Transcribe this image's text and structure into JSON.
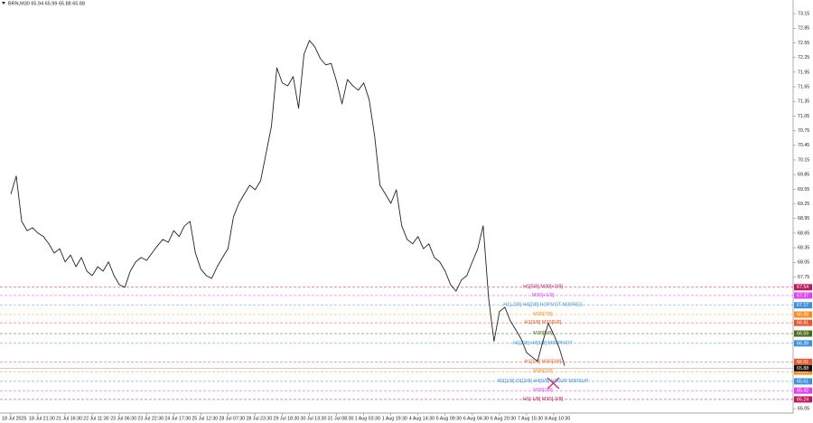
{
  "chart_data": {
    "type": "line",
    "title": "BRN,M30 65.94 65.99 65.88 65.88",
    "color": "#222222",
    "categories": [
      "18 Jul 2025",
      null,
      null,
      null,
      null,
      "18 Jul 21:30",
      null,
      null,
      null,
      null,
      "21 Jul 16:30",
      null,
      null,
      null,
      null,
      "22 Jul 11:30",
      null,
      null,
      null,
      null,
      "23 Jul 06:30",
      null,
      null,
      null,
      null,
      "23 Jul 22:30",
      null,
      null,
      null,
      null,
      "24 Jul 17:30",
      null,
      null,
      null,
      null,
      "25 Jul 12:30",
      null,
      null,
      null,
      null,
      "28 Jul 07:30",
      null,
      null,
      null,
      null,
      "28 Jul 23:30",
      null,
      null,
      null,
      null,
      "29 Jul 18:30",
      null,
      null,
      null,
      null,
      "30 Jul 13:30",
      null,
      null,
      null,
      null,
      "31 Jul 08:30",
      null,
      null,
      null,
      null,
      "1 Aug 03:30",
      null,
      null,
      null,
      null,
      "1 Aug 19:30",
      null,
      null,
      null,
      null,
      "4 Aug 14:30",
      null,
      null,
      null,
      null,
      "5 Aug 09:30",
      null,
      null,
      null,
      null,
      "6 Aug 04:30",
      null,
      null,
      null,
      null,
      "6 Aug 20:30",
      null,
      null,
      null,
      null,
      "7 Aug 15:30",
      null,
      null,
      null,
      null,
      "8 Aug 10:30",
      null,
      null
    ],
    "values": [
      69.45,
      69.82,
      68.89,
      68.7,
      68.76,
      68.65,
      68.58,
      68.43,
      68.24,
      68.33,
      68.06,
      68.2,
      67.96,
      68.15,
      67.87,
      67.78,
      67.96,
      67.87,
      68.06,
      67.78,
      67.59,
      67.54,
      67.87,
      68.06,
      68.15,
      68.09,
      68.24,
      68.39,
      68.52,
      68.46,
      68.7,
      68.58,
      68.8,
      68.89,
      68.24,
      67.91,
      67.78,
      67.72,
      67.96,
      68.15,
      68.33,
      68.98,
      69.26,
      69.45,
      69.63,
      69.54,
      69.72,
      70.28,
      70.84,
      72.04,
      71.73,
      71.67,
      71.86,
      71.21,
      72.32,
      72.6,
      72.47,
      72.23,
      72.1,
      72.13,
      71.76,
      71.3,
      71.8,
      71.67,
      71.58,
      71.73,
      71.39,
      70.65,
      69.63,
      69.45,
      69.26,
      69.54,
      68.8,
      68.52,
      68.43,
      68.58,
      68.33,
      68.43,
      68.15,
      68.06,
      67.87,
      67.59,
      67.46,
      67.69,
      67.78,
      68.06,
      68.33,
      68.8,
      67.32,
      66.43,
      67.04,
      67.13,
      66.85,
      66.67,
      66.48,
      66.2,
      66.11,
      66.02,
      66.43,
      66.8,
      66.57,
      66.3,
      65.93
    ],
    "ylim": [
      64.96,
      73.43
    ],
    "yticks": [
      73.15,
      72.85,
      72.55,
      72.25,
      71.95,
      71.65,
      71.35,
      71.05,
      70.75,
      70.45,
      70.15,
      69.85,
      69.55,
      69.25,
      68.95,
      68.65,
      68.35,
      68.05,
      67.75,
      65.05
    ],
    "grid": false,
    "levels": [
      {
        "text": "H1[5/8] M30[+2/8]",
        "value": 67.54,
        "color": "#c2185b"
      },
      {
        "text": "M30[+1/8]",
        "value": 67.37,
        "color": "#e040fb"
      },
      {
        "text": "H1[-2/8] H4[2/8] H1PIVOT M30RES",
        "value": 67.17,
        "color": "#3d8fe0"
      },
      {
        "text": "M30[7/8]",
        "value": 66.98,
        "color": "#ff8c1a"
      },
      {
        "text": "H1[3/8] M30[6/8]",
        "value": 66.81,
        "color": "#e8572c"
      },
      {
        "text": "M30[5/8]",
        "value": 66.59,
        "color": "#4a6b1f"
      },
      {
        "text": "H1[2/8] H4[1/8] M30PIVOT",
        "value": 66.39,
        "color": "#3d8fe0"
      },
      {
        "text": "H1[1/8] M30[3/8]",
        "value": 66.01,
        "color": "#e8572c"
      },
      {
        "text": "M30[2/8]",
        "value": 65.81,
        "color": "#ff8c1a"
      },
      {
        "text": "W1[1/8] D1[2/8] H4[0/8] H1SUP M30SUP",
        "value": 65.61,
        "color": "#3d8fe0"
      },
      {
        "text": "M30[1/8]",
        "value": 65.42,
        "color": "#e040fb"
      },
      {
        "text": "H1[-1/8] M30[-2/8]",
        "value": 65.24,
        "color": "#c2185b"
      }
    ],
    "current": {
      "value": 65.88,
      "color": "#111111"
    }
  }
}
